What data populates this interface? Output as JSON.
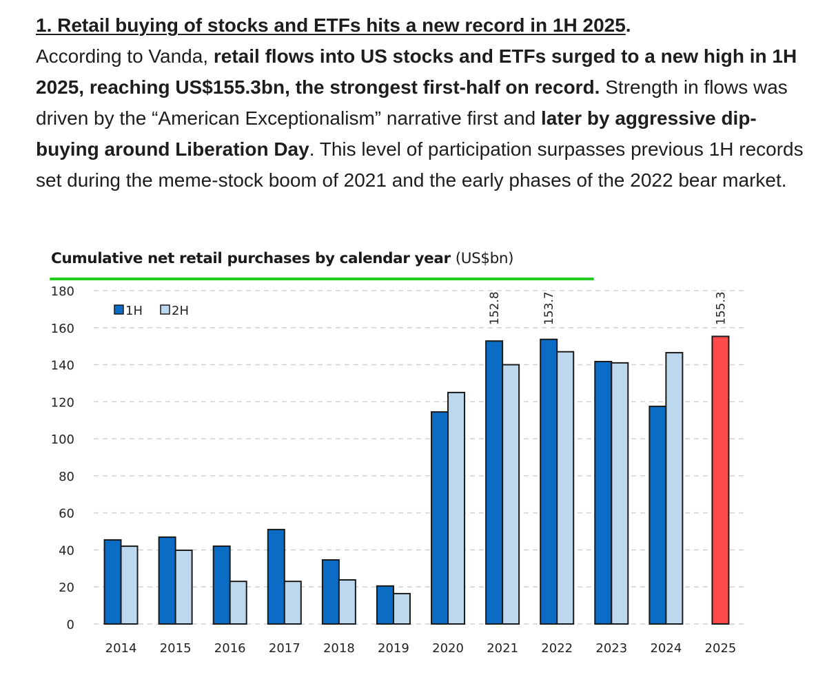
{
  "article": {
    "heading_underlined": "1. Retail buying of stocks and ETFs hits a new record in 1H 2025",
    "heading_trailing": ".",
    "paragraph_segments": [
      {
        "text": "According to Vanda, ",
        "bold": false
      },
      {
        "text": "retail flows into US stocks and ETFs surged to a new high in 1H 2025, reaching US$155.3bn, the strongest first-half on record.",
        "bold": true
      },
      {
        "text": " Strength in flows was driven by the “American Exceptionalism” narrative first and ",
        "bold": false
      },
      {
        "text": "later by aggressive dip-buying around Liberation Day",
        "bold": true
      },
      {
        "text": ". This level of participation surpasses previous 1H records set during the meme-stock boom of 2021 and the early phases of the 2022 bear market.",
        "bold": false
      }
    ]
  },
  "chart_data": {
    "type": "bar",
    "title": "Cumulative net retail purchases by calendar year",
    "title_unit": "(US$bn)",
    "xlabel": "",
    "ylabel": "",
    "ylim": [
      0,
      180
    ],
    "yticks": [
      0,
      20,
      40,
      60,
      80,
      100,
      120,
      140,
      160,
      180
    ],
    "grid": true,
    "legend_position": "top-left",
    "categories": [
      "2014",
      "2015",
      "2016",
      "2017",
      "2018",
      "2019",
      "2020",
      "2021",
      "2022",
      "2023",
      "2024",
      "2025"
    ],
    "series": [
      {
        "name": "1H",
        "color": "#0A6CC4",
        "values": [
          45.4,
          46.9,
          42.0,
          51.0,
          34.6,
          20.5,
          114.5,
          152.8,
          153.7,
          141.7,
          117.5,
          155.3
        ]
      },
      {
        "name": "2H",
        "color": "#BDD7EE",
        "values": [
          42.0,
          39.8,
          23.0,
          23.0,
          23.8,
          16.4,
          125.0,
          140.0,
          147.0,
          141.0,
          146.5,
          null
        ]
      }
    ],
    "highlight": {
      "category": "2025",
      "series": "1H",
      "color": "#FF4B4B"
    },
    "data_labels": [
      {
        "category": "2021",
        "series": "1H",
        "text": "152.8"
      },
      {
        "category": "2022",
        "series": "1H",
        "text": "153.7"
      },
      {
        "category": "2025",
        "series": "1H",
        "text": "155.3"
      }
    ]
  },
  "colors": {
    "title_underline": "#22CC22",
    "gridline": "#D0D0D0",
    "bar_outline": "#1A1A1A"
  }
}
